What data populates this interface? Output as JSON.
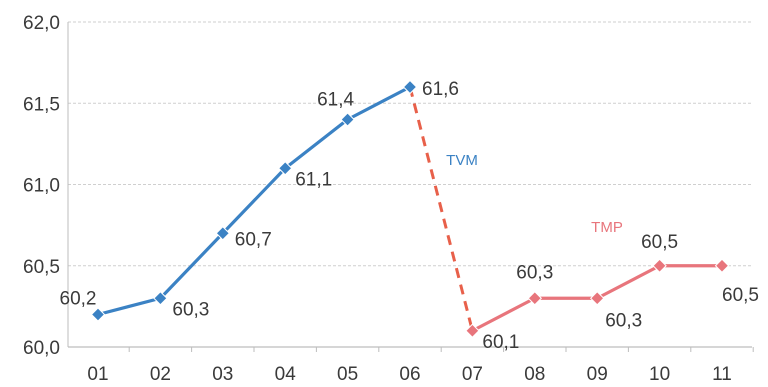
{
  "chart_data": {
    "type": "line",
    "categories": [
      "01",
      "02",
      "03",
      "04",
      "05",
      "06",
      "07",
      "08",
      "09",
      "10",
      "11"
    ],
    "ylim": [
      60.0,
      62.0
    ],
    "yticks": [
      "60,0",
      "60,5",
      "61,0",
      "61,5",
      "62,0"
    ],
    "grid": true,
    "series": [
      {
        "name": "TVM",
        "color": "#3b82c4",
        "x": [
          "01",
          "02",
          "03",
          "04",
          "05",
          "06"
        ],
        "values": [
          60.2,
          60.3,
          60.7,
          61.1,
          61.4,
          61.6
        ],
        "labels": [
          "60,2",
          "60,3",
          "60,7",
          "61,1",
          "61,4",
          "61,6"
        ]
      },
      {
        "name": "TMP",
        "color": "#e8757c",
        "x": [
          "07",
          "08",
          "09",
          "10",
          "11"
        ],
        "values": [
          60.1,
          60.3,
          60.3,
          60.5,
          60.5
        ],
        "labels": [
          "60,1",
          "60,3",
          "60,3",
          "60,5",
          "60,5"
        ]
      }
    ],
    "connector": {
      "from": "06",
      "to": "07",
      "style": "dashed",
      "color": "#e8604a"
    }
  }
}
